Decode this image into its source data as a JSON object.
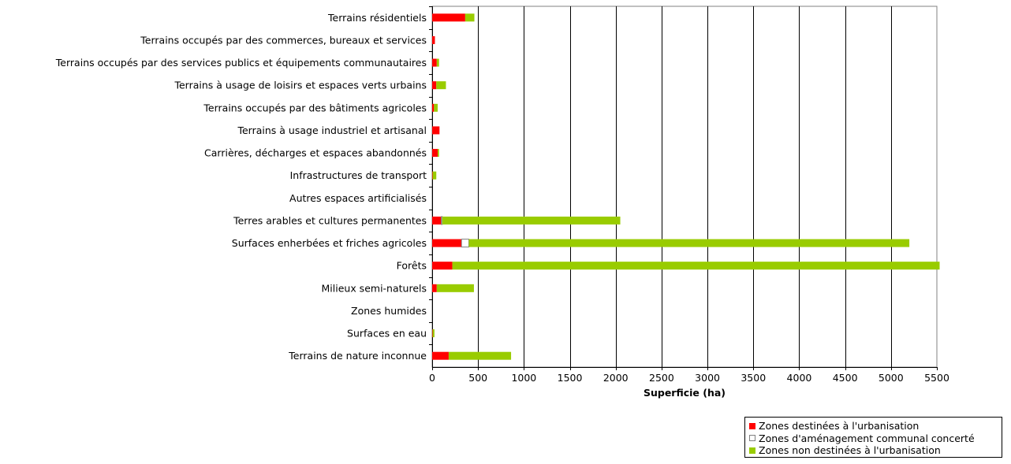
{
  "chart_data": {
    "type": "bar",
    "orientation": "horizontal",
    "stacked": true,
    "categories": [
      "Terrains résidentiels",
      "Terrains occupés par des commerces, bureaux et services",
      "Terrains occupés par des services publics et équipements communautaires",
      "Terrains à usage de loisirs et espaces verts urbains",
      "Terrains occupés par des bâtiments agricoles",
      "Terrains à usage industriel et artisanal",
      "Carrières, décharges et espaces abandonnés",
      "Infrastructures de transport",
      "Autres espaces artificialisés",
      "Terres arables et cultures permanentes",
      "Surfaces enherbées et friches agricoles",
      "Forêts",
      "Milieux semi-naturels",
      "Zones humides",
      "Surfaces en eau",
      "Terrains de nature inconnue"
    ],
    "series": [
      {
        "name": "Zones destinées à l'urbanisation",
        "color": "#ff0000",
        "values": [
          360,
          30,
          50,
          45,
          20,
          80,
          60,
          5,
          0,
          100,
          320,
          220,
          50,
          0,
          5,
          180
        ]
      },
      {
        "name": "Zones d'aménagement communal concerté",
        "color": "#ffffff",
        "values": [
          0,
          0,
          0,
          0,
          0,
          0,
          0,
          0,
          0,
          10,
          80,
          0,
          0,
          0,
          0,
          0
        ]
      },
      {
        "name": "Zones non destinées à l'urbanisation",
        "color": "#99cc00",
        "values": [
          100,
          0,
          25,
          105,
          40,
          0,
          15,
          40,
          0,
          1940,
          4800,
          5310,
          405,
          0,
          20,
          680
        ]
      }
    ],
    "xlabel": "Superficie (ha)",
    "xlim": [
      0,
      5500
    ],
    "xticks": [
      "0",
      "500",
      "1000",
      "1500",
      "2000",
      "2500",
      "3000",
      "3500",
      "4000",
      "4500",
      "5000",
      "5500"
    ],
    "grid": true,
    "legend_position": "bottom-right"
  }
}
